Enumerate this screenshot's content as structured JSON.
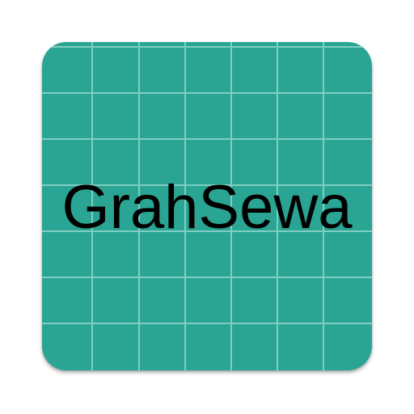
{
  "app_icon": {
    "name": "GrahSewa",
    "background_color": "#2aa493",
    "grid_line_color": "#8fd6cb",
    "text_color": "#000000"
  }
}
